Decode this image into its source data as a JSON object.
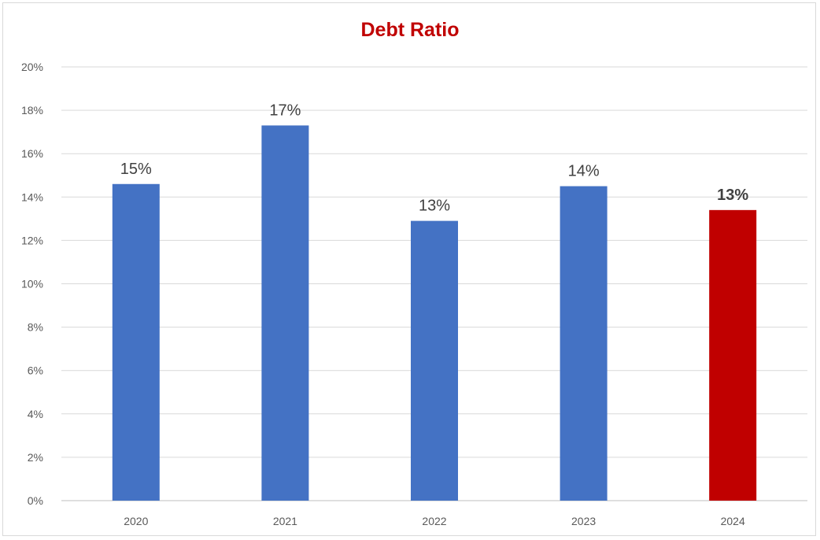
{
  "chart_data": {
    "type": "bar",
    "title": "Debt Ratio",
    "categories": [
      "2020",
      "2021",
      "2022",
      "2023",
      "2024"
    ],
    "values": [
      14.6,
      17.3,
      12.9,
      14.5,
      13.4
    ],
    "data_labels": [
      "15%",
      "17%",
      "13%",
      "14%",
      "13%"
    ],
    "highlight_index": 4,
    "ylim": [
      0,
      20
    ],
    "yticks": [
      0,
      2,
      4,
      6,
      8,
      10,
      12,
      14,
      16,
      18,
      20
    ],
    "ytick_labels": [
      "0%",
      "2%",
      "4%",
      "6%",
      "8%",
      "10%",
      "12%",
      "14%",
      "16%",
      "18%",
      "20%"
    ],
    "xlabel": "",
    "ylabel": "",
    "grid": true,
    "legend": "none",
    "colors": {
      "bar": "#4472c4",
      "highlight": "#c00000",
      "title": "#c00000",
      "label": "#404040"
    }
  }
}
